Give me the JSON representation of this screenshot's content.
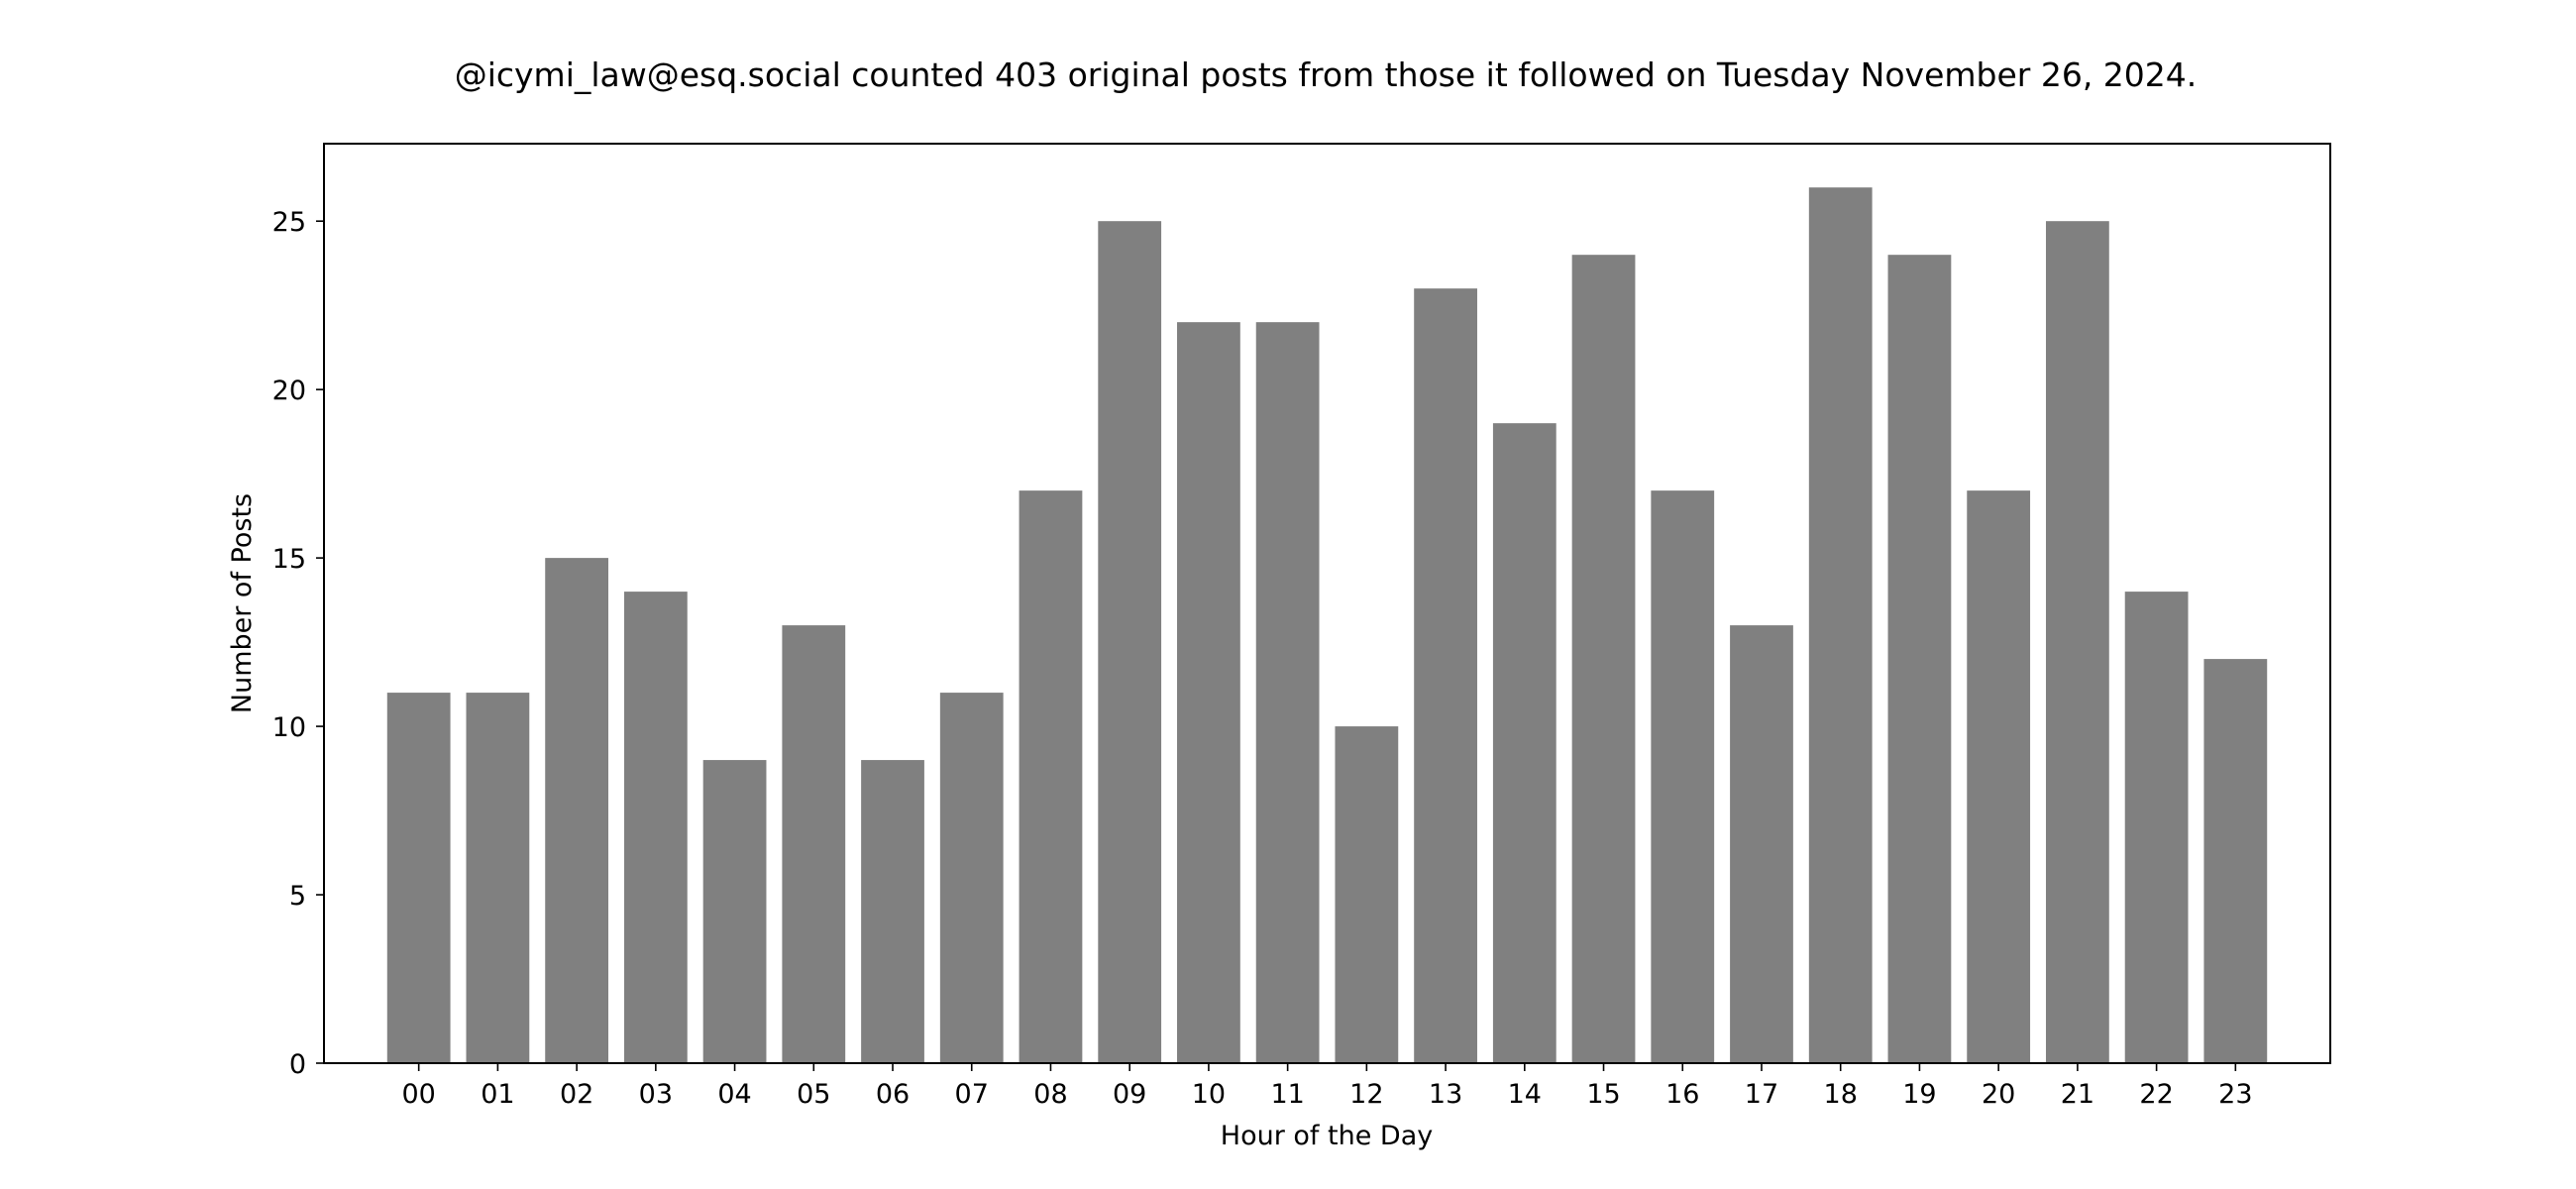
{
  "chart_data": {
    "type": "bar",
    "title": "@icymi_law@esq.social counted 403 original posts from those it followed on Tuesday November 26, 2024.",
    "xlabel": "Hour of the Day",
    "ylabel": "Number of Posts",
    "categories": [
      "00",
      "01",
      "02",
      "03",
      "04",
      "05",
      "06",
      "07",
      "08",
      "09",
      "10",
      "11",
      "12",
      "13",
      "14",
      "15",
      "16",
      "17",
      "18",
      "19",
      "20",
      "21",
      "22",
      "23"
    ],
    "values": [
      11,
      11,
      15,
      14,
      9,
      13,
      9,
      11,
      17,
      25,
      22,
      22,
      10,
      23,
      19,
      24,
      17,
      13,
      26,
      24,
      17,
      25,
      14,
      12
    ],
    "yticks": [
      "0",
      "5",
      "10",
      "15",
      "20",
      "25"
    ],
    "ylim": [
      0,
      27.3
    ],
    "bar_color": "#808080",
    "grid": false,
    "legend": "none"
  }
}
